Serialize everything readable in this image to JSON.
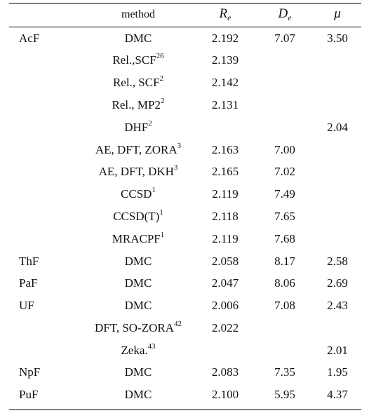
{
  "header": {
    "method": "method",
    "re": {
      "main": "R",
      "sub": "e"
    },
    "de": {
      "main": "D",
      "sub": "e"
    },
    "mu": "μ"
  },
  "rows": [
    {
      "molecule": "AcF",
      "method": "DMC",
      "sup": "",
      "re": "2.192",
      "de": "7.07",
      "mu": "3.50"
    },
    {
      "molecule": "",
      "method": "Rel.,SCF",
      "sup": "26",
      "re": "2.139",
      "de": "",
      "mu": ""
    },
    {
      "molecule": "",
      "method": "Rel., SCF",
      "sup": "2",
      "re": "2.142",
      "de": "",
      "mu": ""
    },
    {
      "molecule": "",
      "method": "Rel., MP2",
      "sup": "2",
      "re": "2.131",
      "de": "",
      "mu": ""
    },
    {
      "molecule": "",
      "method": "DHF",
      "sup": "2",
      "re": "",
      "de": "",
      "mu": "2.04"
    },
    {
      "molecule": "",
      "method": "AE, DFT, ZORA",
      "sup": "3",
      "re": "2.163",
      "de": "7.00",
      "mu": ""
    },
    {
      "molecule": "",
      "method": "AE, DFT, DKH",
      "sup": "3",
      "re": "2.165",
      "de": "7.02",
      "mu": ""
    },
    {
      "molecule": "",
      "method": "CCSD",
      "sup": "1",
      "re": "2.119",
      "de": "7.49",
      "mu": ""
    },
    {
      "molecule": "",
      "method": "CCSD(T)",
      "sup": "1",
      "re": "2.118",
      "de": "7.65",
      "mu": ""
    },
    {
      "molecule": "",
      "method": "MRACPF",
      "sup": "1",
      "re": "2.119",
      "de": "7.68",
      "mu": ""
    },
    {
      "molecule": "ThF",
      "method": "DMC",
      "sup": "",
      "re": "2.058",
      "de": "8.17",
      "mu": "2.58"
    },
    {
      "molecule": "PaF",
      "method": "DMC",
      "sup": "",
      "re": "2.047",
      "de": "8.06",
      "mu": "2.69"
    },
    {
      "molecule": "UF",
      "method": "DMC",
      "sup": "",
      "re": "2.006",
      "de": "7.08",
      "mu": "2.43"
    },
    {
      "molecule": "",
      "method": "DFT, SO-ZORA",
      "sup": "42",
      "re": "2.022",
      "de": "",
      "mu": ""
    },
    {
      "molecule": "",
      "method": "Zeka.",
      "sup": "43",
      "re": "",
      "de": "",
      "mu": "2.01"
    },
    {
      "molecule": "NpF",
      "method": "DMC",
      "sup": "",
      "re": "2.083",
      "de": "7.35",
      "mu": "1.95"
    },
    {
      "molecule": "PuF",
      "method": "DMC",
      "sup": "",
      "re": "2.100",
      "de": "5.95",
      "mu": "4.37"
    }
  ]
}
